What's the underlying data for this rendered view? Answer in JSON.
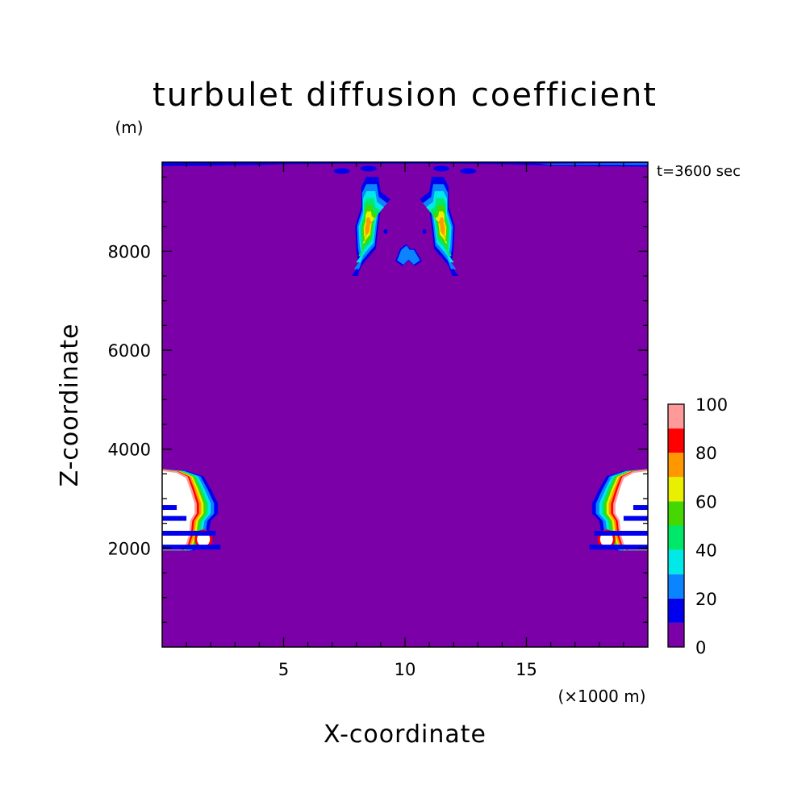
{
  "chart_data": {
    "type": "heatmap",
    "title": "turbulet diffusion coefficient",
    "xlabel": "X-coordinate",
    "ylabel": "Z-coordinate",
    "x_unit": "(×1000 m)",
    "y_unit": "(m)",
    "time_label": "t=3600 sec",
    "xlim": [
      0,
      20
    ],
    "ylim": [
      0,
      9800
    ],
    "x_ticks": [
      5,
      10,
      15
    ],
    "y_ticks": [
      2000,
      4000,
      6000,
      8000
    ],
    "x_minor_step": 1,
    "y_minor_step": 500,
    "background_value": 0,
    "colorbar": {
      "levels": [
        0,
        10,
        20,
        30,
        40,
        50,
        60,
        70,
        80,
        90,
        100
      ],
      "tick_labels": [
        "0",
        "20",
        "40",
        "60",
        "80",
        "100"
      ],
      "colors": [
        "#7b00a8",
        "#0000ee",
        "#0a84ff",
        "#00e8e8",
        "#00e86a",
        "#44d800",
        "#e8f000",
        "#ff9800",
        "#ff0000",
        "#ff9a9a"
      ],
      "above_max_color": "#ffffff"
    },
    "features": [
      {
        "name": "upper-left-plume",
        "x_range": [
          7.6,
          9.4
        ],
        "z_range": [
          7500,
          9800
        ],
        "max_level": 70
      },
      {
        "name": "upper-right-plume",
        "x_range": [
          10.6,
          12.6
        ],
        "z_range": [
          7500,
          9800
        ],
        "max_level": 70
      },
      {
        "name": "center-blob",
        "x_range": [
          9.6,
          10.8
        ],
        "z_range": [
          7600,
          8200
        ],
        "max_level": 20
      },
      {
        "name": "top-boundary-layer",
        "x_range": [
          0,
          20
        ],
        "z_range": [
          9650,
          9800
        ],
        "max_level": 20
      },
      {
        "name": "left-boundary-cloud",
        "x_range": [
          0,
          2.2
        ],
        "z_range": [
          1950,
          3600
        ],
        "max_level": 100
      },
      {
        "name": "right-boundary-cloud",
        "x_range": [
          17.8,
          20
        ],
        "z_range": [
          1950,
          3600
        ],
        "max_level": 100
      }
    ]
  }
}
